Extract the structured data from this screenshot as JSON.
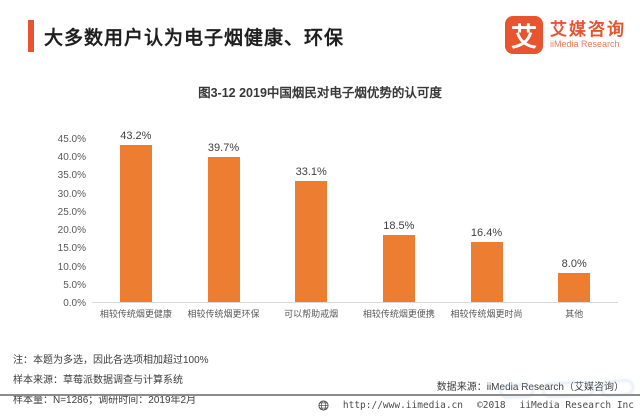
{
  "header": {
    "title": "大多数用户认为电子烟健康、环保",
    "accent_color": "#E8542F",
    "logo": {
      "mark": "艾",
      "name_cn": "艾媒咨询",
      "name_en": "iiMedia Research"
    }
  },
  "chart_data": {
    "type": "bar",
    "title": "图3-12 2019中国烟民对电子烟优势的认可度",
    "categories": [
      "相较传统烟更健康",
      "相较传统烟更环保",
      "可以帮助戒烟",
      "相较传统烟更便携",
      "相较传统烟更时尚",
      "其他"
    ],
    "values": [
      43.2,
      39.7,
      33.1,
      18.5,
      16.4,
      8.0
    ],
    "data_labels": [
      "43.2%",
      "39.7%",
      "33.1%",
      "18.5%",
      "16.4%",
      "8.0%"
    ],
    "yticks": [
      "45.0%",
      "40.0%",
      "35.0%",
      "30.0%",
      "25.0%",
      "20.0%",
      "15.0%",
      "10.0%",
      "5.0%",
      "0.0%"
    ],
    "ylim": [
      0,
      45
    ],
    "bar_color": "#ED7D31",
    "grid": false,
    "xlabel": "",
    "ylabel": "",
    "legend": null
  },
  "notes": {
    "line1": "注：本题为多选，因此各选项相加超过100%",
    "line2": "样本来源：草莓派数据调查与计算系统",
    "line3": "样本量：N=1286；调研时间：2019年2月"
  },
  "source": "数据来源：iiMedia Research（艾媒咨询）",
  "footer": {
    "url": "http://www.iimedia.cn",
    "copyright": "©2018",
    "company": "iiMedia Research Inc"
  }
}
